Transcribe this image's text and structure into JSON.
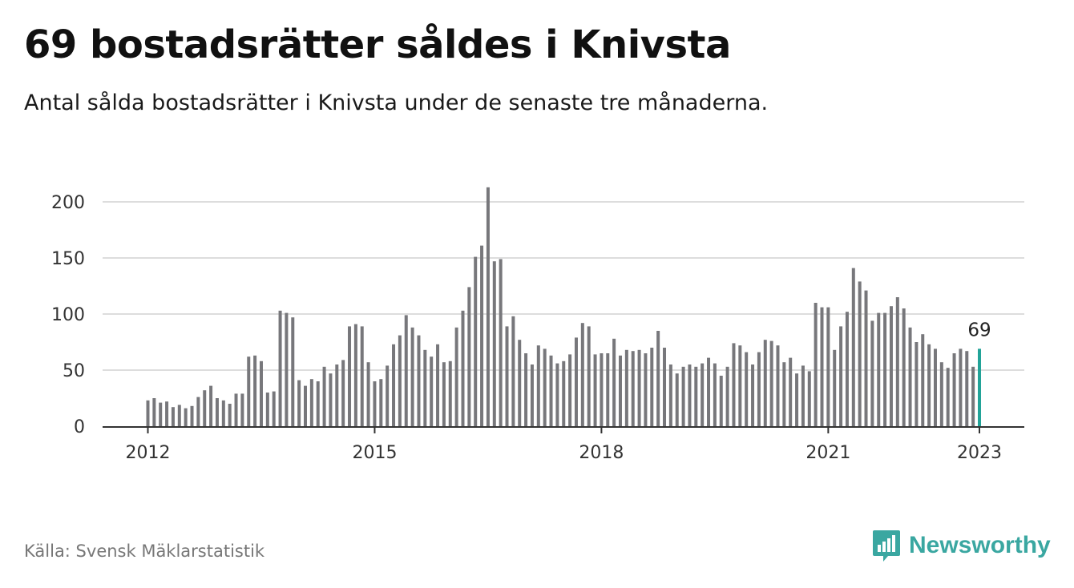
{
  "title": "69 bostadsrätter såldes i Knivsta",
  "subtitle": "Antal sålda bostadsrätter i Knivsta under de senaste tre månaderna.",
  "source": "Källa: Svensk Mäklarstatistik",
  "brand": "Newsworthy",
  "colors": {
    "bar": "#77777b",
    "highlight": "#22a398",
    "grid": "#dddddd",
    "brand": "#3aa7a1"
  },
  "chart_data": {
    "type": "bar",
    "x_start": "2012-01",
    "x_ticks": [
      "2012",
      "2015",
      "2018",
      "2021",
      "2023"
    ],
    "y_ticks": [
      0,
      50,
      100,
      150,
      200
    ],
    "ylim": [
      0,
      220
    ],
    "grid": true,
    "highlight_label": "69",
    "values": [
      23,
      25,
      21,
      22,
      17,
      19,
      16,
      18,
      26,
      32,
      36,
      25,
      23,
      20,
      29,
      29,
      62,
      63,
      58,
      30,
      31,
      103,
      101,
      97,
      41,
      36,
      42,
      40,
      53,
      47,
      55,
      59,
      89,
      91,
      89,
      57,
      40,
      42,
      54,
      73,
      81,
      99,
      88,
      81,
      68,
      62,
      73,
      57,
      58,
      88,
      103,
      124,
      151,
      161,
      213,
      147,
      149,
      89,
      98,
      77,
      65,
      55,
      72,
      69,
      63,
      56,
      58,
      64,
      79,
      92,
      89,
      64,
      65,
      65,
      78,
      63,
      68,
      67,
      68,
      65,
      70,
      85,
      70,
      55,
      47,
      53,
      55,
      53,
      56,
      61,
      56,
      45,
      53,
      74,
      72,
      66,
      55,
      66,
      77,
      76,
      72,
      57,
      61,
      47,
      54,
      49,
      110,
      106,
      106,
      68,
      89,
      102,
      141,
      129,
      121,
      94,
      101,
      101,
      107,
      115,
      105,
      88,
      75,
      82,
      73,
      69,
      57,
      52,
      65,
      69,
      67,
      53,
      69
    ]
  }
}
